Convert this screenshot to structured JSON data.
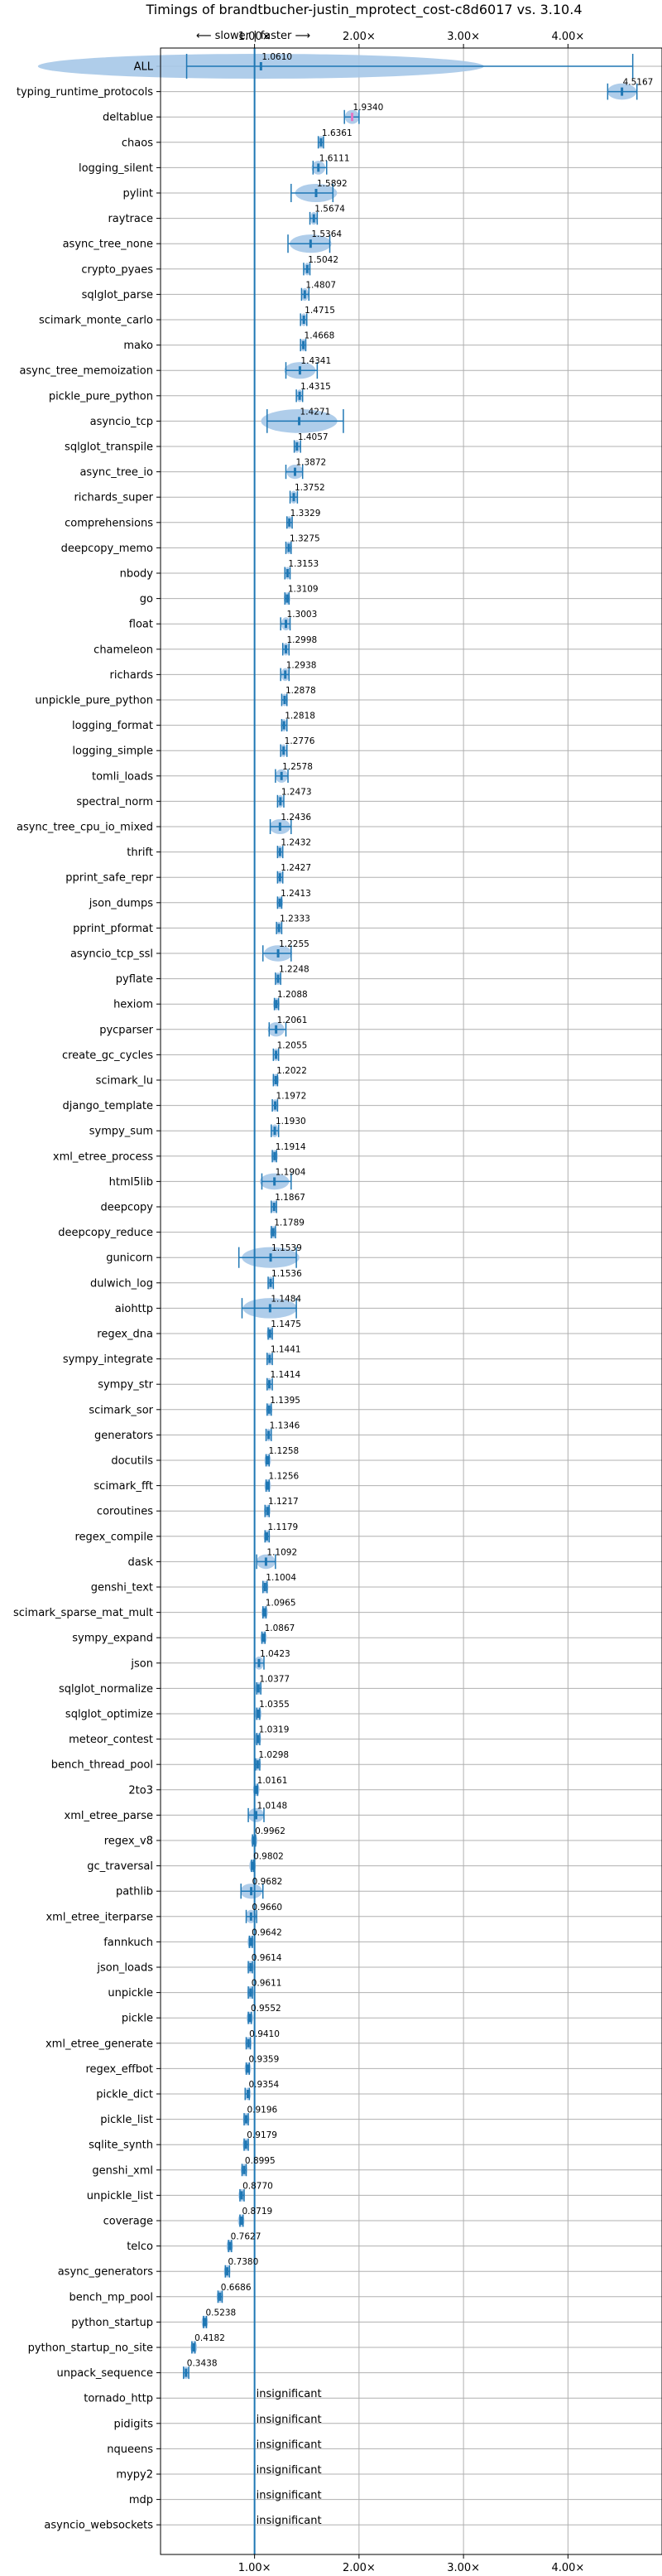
{
  "chart_data": {
    "type": "violin",
    "title": "Timings of brandtbucher-justin_mprotect_cost-c8d6017 vs. 3.10.4",
    "direction_label": "⟵ slower | faster ⟶",
    "x_ticks": [
      "1.00×",
      "2.00×",
      "3.00×",
      "4.00×"
    ],
    "x_tick_values": [
      1,
      2,
      3,
      4
    ],
    "xlim": [
      0.1,
      4.9
    ],
    "grid": true,
    "reference_line": 1.0,
    "insignificant_label": "insignificant",
    "colors": {
      "violin": "#a6c8e8",
      "marker": "#1f77b4",
      "highlight": "#e377c2",
      "grid": "#b0b0b0"
    },
    "benchmarks": [
      {
        "name": "ALL",
        "value": 1.061,
        "label": "1.0610",
        "lo": 0.35,
        "hi": 4.62
      },
      {
        "name": "typing_runtime_protocols",
        "value": 4.5167,
        "label": "4.5167",
        "lo": 4.38,
        "hi": 4.66
      },
      {
        "name": "deltablue",
        "value": 1.934,
        "label": "1.9340",
        "lo": 1.86,
        "hi": 2.0,
        "highlight": true
      },
      {
        "name": "chaos",
        "value": 1.6361,
        "label": "1.6361",
        "lo": 1.61,
        "hi": 1.66
      },
      {
        "name": "logging_silent",
        "value": 1.6111,
        "label": "1.6111",
        "lo": 1.56,
        "hi": 1.69
      },
      {
        "name": "pylint",
        "value": 1.5892,
        "label": "1.5892",
        "lo": 1.35,
        "hi": 1.75
      },
      {
        "name": "raytrace",
        "value": 1.5674,
        "label": "1.5674",
        "lo": 1.53,
        "hi": 1.6
      },
      {
        "name": "async_tree_none",
        "value": 1.5364,
        "label": "1.5364",
        "lo": 1.32,
        "hi": 1.72
      },
      {
        "name": "crypto_pyaes",
        "value": 1.5042,
        "label": "1.5042",
        "lo": 1.47,
        "hi": 1.53
      },
      {
        "name": "sqlglot_parse",
        "value": 1.4807,
        "label": "1.4807",
        "lo": 1.45,
        "hi": 1.52
      },
      {
        "name": "scimark_monte_carlo",
        "value": 1.4715,
        "label": "1.4715",
        "lo": 1.44,
        "hi": 1.5
      },
      {
        "name": "mako",
        "value": 1.4668,
        "label": "1.4668",
        "lo": 1.44,
        "hi": 1.49
      },
      {
        "name": "async_tree_memoization",
        "value": 1.4341,
        "label": "1.4341",
        "lo": 1.3,
        "hi": 1.6
      },
      {
        "name": "pickle_pure_python",
        "value": 1.4315,
        "label": "1.4315",
        "lo": 1.4,
        "hi": 1.46
      },
      {
        "name": "asyncio_tcp",
        "value": 1.4271,
        "label": "1.4271",
        "lo": 1.12,
        "hi": 1.85
      },
      {
        "name": "sqlglot_transpile",
        "value": 1.4057,
        "label": "1.4057",
        "lo": 1.38,
        "hi": 1.44
      },
      {
        "name": "async_tree_io",
        "value": 1.3872,
        "label": "1.3872",
        "lo": 1.3,
        "hi": 1.46
      },
      {
        "name": "richards_super",
        "value": 1.3752,
        "label": "1.3752",
        "lo": 1.34,
        "hi": 1.41
      },
      {
        "name": "comprehensions",
        "value": 1.3329,
        "label": "1.3329",
        "lo": 1.31,
        "hi": 1.36
      },
      {
        "name": "deepcopy_memo",
        "value": 1.3275,
        "label": "1.3275",
        "lo": 1.3,
        "hi": 1.35
      },
      {
        "name": "nbody",
        "value": 1.3153,
        "label": "1.3153",
        "lo": 1.29,
        "hi": 1.34
      },
      {
        "name": "go",
        "value": 1.3109,
        "label": "1.3109",
        "lo": 1.29,
        "hi": 1.33
      },
      {
        "name": "float",
        "value": 1.3003,
        "label": "1.3003",
        "lo": 1.25,
        "hi": 1.34
      },
      {
        "name": "chameleon",
        "value": 1.2998,
        "label": "1.2998",
        "lo": 1.27,
        "hi": 1.33
      },
      {
        "name": "richards",
        "value": 1.2938,
        "label": "1.2938",
        "lo": 1.25,
        "hi": 1.33
      },
      {
        "name": "unpickle_pure_python",
        "value": 1.2878,
        "label": "1.2878",
        "lo": 1.26,
        "hi": 1.31
      },
      {
        "name": "logging_format",
        "value": 1.2818,
        "label": "1.2818",
        "lo": 1.26,
        "hi": 1.31
      },
      {
        "name": "logging_simple",
        "value": 1.2776,
        "label": "1.2776",
        "lo": 1.25,
        "hi": 1.31
      },
      {
        "name": "tomli_loads",
        "value": 1.2578,
        "label": "1.2578",
        "lo": 1.2,
        "hi": 1.32
      },
      {
        "name": "spectral_norm",
        "value": 1.2473,
        "label": "1.2473",
        "lo": 1.22,
        "hi": 1.28
      },
      {
        "name": "async_tree_cpu_io_mixed",
        "value": 1.2436,
        "label": "1.2436",
        "lo": 1.15,
        "hi": 1.35
      },
      {
        "name": "thrift",
        "value": 1.2432,
        "label": "1.2432",
        "lo": 1.22,
        "hi": 1.27
      },
      {
        "name": "pprint_safe_repr",
        "value": 1.2427,
        "label": "1.2427",
        "lo": 1.22,
        "hi": 1.27
      },
      {
        "name": "json_dumps",
        "value": 1.2413,
        "label": "1.2413",
        "lo": 1.22,
        "hi": 1.26
      },
      {
        "name": "pprint_pformat",
        "value": 1.2333,
        "label": "1.2333",
        "lo": 1.21,
        "hi": 1.26
      },
      {
        "name": "asyncio_tcp_ssl",
        "value": 1.2255,
        "label": "1.2255",
        "lo": 1.08,
        "hi": 1.35
      },
      {
        "name": "pyflate",
        "value": 1.2248,
        "label": "1.2248",
        "lo": 1.2,
        "hi": 1.25
      },
      {
        "name": "hexiom",
        "value": 1.2088,
        "label": "1.2088",
        "lo": 1.19,
        "hi": 1.23
      },
      {
        "name": "pycparser",
        "value": 1.2061,
        "label": "1.2061",
        "lo": 1.14,
        "hi": 1.3
      },
      {
        "name": "create_gc_cycles",
        "value": 1.2055,
        "label": "1.2055",
        "lo": 1.18,
        "hi": 1.23
      },
      {
        "name": "scimark_lu",
        "value": 1.2022,
        "label": "1.2022",
        "lo": 1.18,
        "hi": 1.22
      },
      {
        "name": "django_template",
        "value": 1.1972,
        "label": "1.1972",
        "lo": 1.17,
        "hi": 1.22
      },
      {
        "name": "sympy_sum",
        "value": 1.193,
        "label": "1.1930",
        "lo": 1.16,
        "hi": 1.23
      },
      {
        "name": "xml_etree_process",
        "value": 1.1914,
        "label": "1.1914",
        "lo": 1.17,
        "hi": 1.21
      },
      {
        "name": "html5lib",
        "value": 1.1904,
        "label": "1.1904",
        "lo": 1.07,
        "hi": 1.35
      },
      {
        "name": "deepcopy",
        "value": 1.1867,
        "label": "1.1867",
        "lo": 1.16,
        "hi": 1.21
      },
      {
        "name": "deepcopy_reduce",
        "value": 1.1789,
        "label": "1.1789",
        "lo": 1.16,
        "hi": 1.2
      },
      {
        "name": "gunicorn",
        "value": 1.1539,
        "label": "1.1539",
        "lo": 0.85,
        "hi": 1.4
      },
      {
        "name": "dulwich_log",
        "value": 1.1536,
        "label": "1.1536",
        "lo": 1.13,
        "hi": 1.18
      },
      {
        "name": "aiohttp",
        "value": 1.1484,
        "label": "1.1484",
        "lo": 0.88,
        "hi": 1.4
      },
      {
        "name": "regex_dna",
        "value": 1.1475,
        "label": "1.1475",
        "lo": 1.13,
        "hi": 1.17
      },
      {
        "name": "sympy_integrate",
        "value": 1.1441,
        "label": "1.1441",
        "lo": 1.12,
        "hi": 1.17
      },
      {
        "name": "sympy_str",
        "value": 1.1414,
        "label": "1.1414",
        "lo": 1.12,
        "hi": 1.17
      },
      {
        "name": "scimark_sor",
        "value": 1.1395,
        "label": "1.1395",
        "lo": 1.12,
        "hi": 1.16
      },
      {
        "name": "generators",
        "value": 1.1346,
        "label": "1.1346",
        "lo": 1.11,
        "hi": 1.16
      },
      {
        "name": "docutils",
        "value": 1.1258,
        "label": "1.1258",
        "lo": 1.11,
        "hi": 1.14
      },
      {
        "name": "scimark_fft",
        "value": 1.1256,
        "label": "1.1256",
        "lo": 1.11,
        "hi": 1.14
      },
      {
        "name": "coroutines",
        "value": 1.1217,
        "label": "1.1217",
        "lo": 1.1,
        "hi": 1.14
      },
      {
        "name": "regex_compile",
        "value": 1.1179,
        "label": "1.1179",
        "lo": 1.1,
        "hi": 1.14
      },
      {
        "name": "dask",
        "value": 1.1092,
        "label": "1.1092",
        "lo": 1.02,
        "hi": 1.2
      },
      {
        "name": "genshi_text",
        "value": 1.1004,
        "label": "1.1004",
        "lo": 1.08,
        "hi": 1.12
      },
      {
        "name": "scimark_sparse_mat_mult",
        "value": 1.0965,
        "label": "1.0965",
        "lo": 1.08,
        "hi": 1.11
      },
      {
        "name": "sympy_expand",
        "value": 1.0867,
        "label": "1.0867",
        "lo": 1.07,
        "hi": 1.1
      },
      {
        "name": "json",
        "value": 1.0423,
        "label": "1.0423",
        "lo": 1.0,
        "hi": 1.09
      },
      {
        "name": "sqlglot_normalize",
        "value": 1.0377,
        "label": "1.0377",
        "lo": 1.02,
        "hi": 1.06
      },
      {
        "name": "sqlglot_optimize",
        "value": 1.0355,
        "label": "1.0355",
        "lo": 1.02,
        "hi": 1.05
      },
      {
        "name": "meteor_contest",
        "value": 1.0319,
        "label": "1.0319",
        "lo": 1.02,
        "hi": 1.05
      },
      {
        "name": "bench_thread_pool",
        "value": 1.0298,
        "label": "1.0298",
        "lo": 1.01,
        "hi": 1.05
      },
      {
        "name": "2to3",
        "value": 1.0161,
        "label": "1.0161",
        "lo": 1.0,
        "hi": 1.03
      },
      {
        "name": "xml_etree_parse",
        "value": 1.0148,
        "label": "1.0148",
        "lo": 0.94,
        "hi": 1.09
      },
      {
        "name": "regex_v8",
        "value": 0.9962,
        "label": "0.9962",
        "lo": 0.98,
        "hi": 1.01
      },
      {
        "name": "gc_traversal",
        "value": 0.9802,
        "label": "0.9802",
        "lo": 0.97,
        "hi": 0.99
      },
      {
        "name": "pathlib",
        "value": 0.9682,
        "label": "0.9682",
        "lo": 0.87,
        "hi": 1.08
      },
      {
        "name": "xml_etree_iterparse",
        "value": 0.966,
        "label": "0.9660",
        "lo": 0.92,
        "hi": 1.02
      },
      {
        "name": "fannkuch",
        "value": 0.9642,
        "label": "0.9642",
        "lo": 0.95,
        "hi": 0.98
      },
      {
        "name": "json_loads",
        "value": 0.9614,
        "label": "0.9614",
        "lo": 0.94,
        "hi": 0.98
      },
      {
        "name": "unpickle",
        "value": 0.9611,
        "label": "0.9611",
        "lo": 0.94,
        "hi": 0.98
      },
      {
        "name": "pickle",
        "value": 0.9552,
        "label": "0.9552",
        "lo": 0.94,
        "hi": 0.97
      },
      {
        "name": "xml_etree_generate",
        "value": 0.941,
        "label": "0.9410",
        "lo": 0.92,
        "hi": 0.96
      },
      {
        "name": "regex_effbot",
        "value": 0.9359,
        "label": "0.9359",
        "lo": 0.92,
        "hi": 0.95
      },
      {
        "name": "pickle_dict",
        "value": 0.9354,
        "label": "0.9354",
        "lo": 0.91,
        "hi": 0.95
      },
      {
        "name": "pickle_list",
        "value": 0.9196,
        "label": "0.9196",
        "lo": 0.9,
        "hi": 0.94
      },
      {
        "name": "sqlite_synth",
        "value": 0.9179,
        "label": "0.9179",
        "lo": 0.9,
        "hi": 0.94
      },
      {
        "name": "genshi_xml",
        "value": 0.8995,
        "label": "0.8995",
        "lo": 0.88,
        "hi": 0.92
      },
      {
        "name": "unpickle_list",
        "value": 0.877,
        "label": "0.8770",
        "lo": 0.86,
        "hi": 0.9
      },
      {
        "name": "coverage",
        "value": 0.8719,
        "label": "0.8719",
        "lo": 0.86,
        "hi": 0.89
      },
      {
        "name": "telco",
        "value": 0.7627,
        "label": "0.7627",
        "lo": 0.75,
        "hi": 0.78
      },
      {
        "name": "async_generators",
        "value": 0.738,
        "label": "0.7380",
        "lo": 0.72,
        "hi": 0.76
      },
      {
        "name": "bench_mp_pool",
        "value": 0.6686,
        "label": "0.6686",
        "lo": 0.65,
        "hi": 0.69
      },
      {
        "name": "python_startup",
        "value": 0.5238,
        "label": "0.5238",
        "lo": 0.51,
        "hi": 0.54
      },
      {
        "name": "python_startup_no_site",
        "value": 0.4182,
        "label": "0.4182",
        "lo": 0.4,
        "hi": 0.43
      },
      {
        "name": "unpack_sequence",
        "value": 0.3438,
        "label": "0.3438",
        "lo": 0.32,
        "hi": 0.37
      },
      {
        "name": "tornado_http",
        "insignificant": true
      },
      {
        "name": "pidigits",
        "insignificant": true
      },
      {
        "name": "nqueens",
        "insignificant": true
      },
      {
        "name": "mypy2",
        "insignificant": true
      },
      {
        "name": "mdp",
        "insignificant": true
      },
      {
        "name": "asyncio_websockets",
        "insignificant": true
      }
    ]
  }
}
